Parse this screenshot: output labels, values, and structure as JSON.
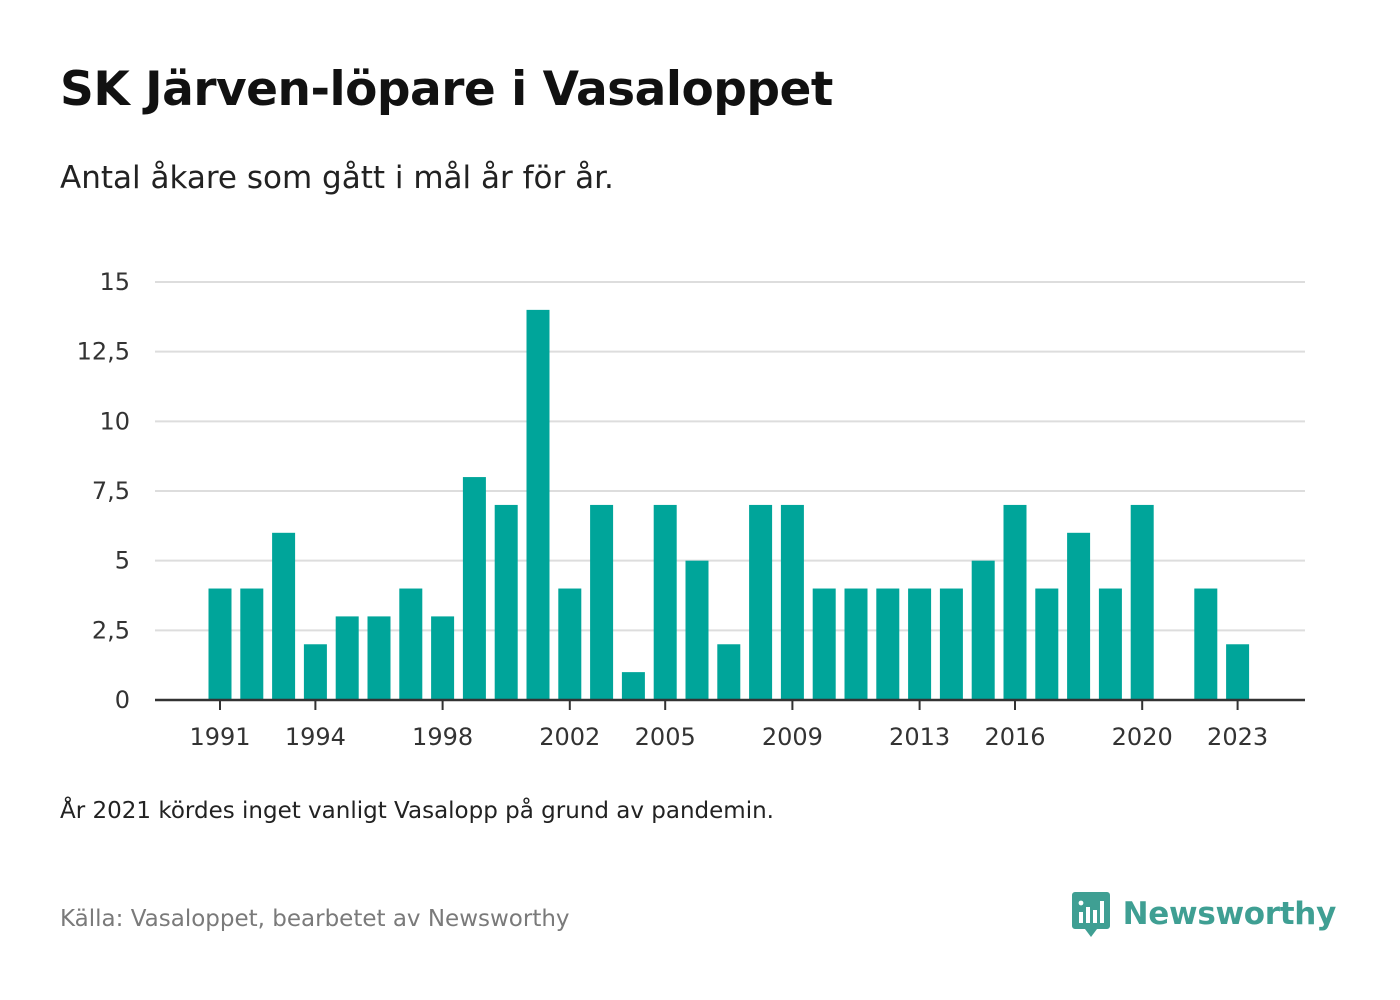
{
  "header": {
    "title": "SK Järven-löpare i Vasaloppet",
    "subtitle": "Antal åkare som gått i mål år för år."
  },
  "footer": {
    "note": "År 2021 kördes inget vanligt Vasalopp på grund av pandemin.",
    "source": "Källa: Vasaloppet, bearbetet av Newsworthy",
    "brand": "Newsworthy",
    "brand_icon": "newsworthy-logo-icon"
  },
  "colors": {
    "bar": "#00a59a",
    "grid": "#dddddd",
    "axis": "#333333",
    "brand": "#3f9f93"
  },
  "chart_data": {
    "type": "bar",
    "title": "SK Järven-löpare i Vasaloppet",
    "subtitle": "Antal åkare som gått i mål år för år.",
    "xlabel": "",
    "ylabel": "",
    "ylim": [
      0,
      15
    ],
    "y_ticks": [
      0,
      2.5,
      5,
      7.5,
      10,
      12.5,
      15
    ],
    "y_tick_labels": [
      "0",
      "2,5",
      "5",
      "7,5",
      "10",
      "12,5",
      "15"
    ],
    "x_tick_labels": [
      "1991",
      "1994",
      "1998",
      "2002",
      "2005",
      "2009",
      "2013",
      "2016",
      "2020",
      "2023"
    ],
    "grid": true,
    "categories": [
      1991,
      1992,
      1993,
      1994,
      1995,
      1996,
      1997,
      1998,
      1999,
      2000,
      2001,
      2002,
      2003,
      2004,
      2005,
      2006,
      2007,
      2008,
      2009,
      2010,
      2011,
      2012,
      2013,
      2014,
      2015,
      2016,
      2017,
      2018,
      2019,
      2020,
      2021,
      2022,
      2023
    ],
    "values": [
      4,
      4,
      6,
      2,
      3,
      3,
      4,
      3,
      8,
      7,
      14,
      4,
      7,
      1,
      7,
      5,
      2,
      7,
      7,
      4,
      4,
      4,
      4,
      4,
      5,
      7,
      4,
      6,
      4,
      7,
      null,
      4,
      2
    ]
  }
}
